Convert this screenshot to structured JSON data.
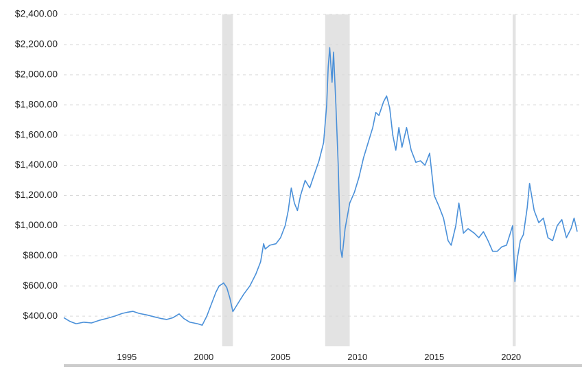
{
  "chart_data": {
    "type": "line",
    "title": "",
    "xlabel": "",
    "ylabel": "",
    "xlim": [
      1990.9,
      2024.3
    ],
    "ylim": [
      200,
      2400
    ],
    "y_ticks": [
      {
        "value": 400,
        "label": "$400.00"
      },
      {
        "value": 600,
        "label": "$600.00"
      },
      {
        "value": 800,
        "label": "$800.00"
      },
      {
        "value": 1000,
        "label": "$1,000.00"
      },
      {
        "value": 1200,
        "label": "$1,200.00"
      },
      {
        "value": 1400,
        "label": "$1,400.00"
      },
      {
        "value": 1600,
        "label": "$1,600.00"
      },
      {
        "value": 1800,
        "label": "$1,800.00"
      },
      {
        "value": 2000,
        "label": "$2,000.00"
      },
      {
        "value": 2200,
        "label": "$2,200.00"
      },
      {
        "value": 2400,
        "label": "$2,400.00"
      }
    ],
    "x_ticks": [
      {
        "value": 1995,
        "label": "1995"
      },
      {
        "value": 2000,
        "label": "2000"
      },
      {
        "value": 2005,
        "label": "2005"
      },
      {
        "value": 2010,
        "label": "2010"
      },
      {
        "value": 2015,
        "label": "2015"
      },
      {
        "value": 2020,
        "label": "2020"
      }
    ],
    "recessions": [
      {
        "start": 2001.2,
        "end": 2001.9
      },
      {
        "start": 2007.9,
        "end": 2009.5
      },
      {
        "start": 2020.1,
        "end": 2020.3
      }
    ],
    "grid": "horizontal dashed",
    "series": [
      {
        "color": "#4a90d9",
        "points": [
          [
            1990.9,
            390
          ],
          [
            1991.3,
            365
          ],
          [
            1991.7,
            350
          ],
          [
            1992.2,
            360
          ],
          [
            1992.7,
            355
          ],
          [
            1993.2,
            372
          ],
          [
            1993.7,
            385
          ],
          [
            1994.2,
            400
          ],
          [
            1994.7,
            418
          ],
          [
            1995.0,
            425
          ],
          [
            1995.4,
            432
          ],
          [
            1995.8,
            418
          ],
          [
            1996.3,
            408
          ],
          [
            1996.8,
            395
          ],
          [
            1997.2,
            385
          ],
          [
            1997.6,
            378
          ],
          [
            1998.0,
            390
          ],
          [
            1998.4,
            415
          ],
          [
            1998.7,
            385
          ],
          [
            1999.1,
            360
          ],
          [
            1999.6,
            350
          ],
          [
            1999.9,
            340
          ],
          [
            2000.2,
            400
          ],
          [
            2000.5,
            480
          ],
          [
            2000.8,
            560
          ],
          [
            2001.0,
            600
          ],
          [
            2001.3,
            620
          ],
          [
            2001.5,
            590
          ],
          [
            2001.7,
            520
          ],
          [
            2001.9,
            430
          ],
          [
            2002.2,
            480
          ],
          [
            2002.6,
            545
          ],
          [
            2003.0,
            600
          ],
          [
            2003.4,
            680
          ],
          [
            2003.7,
            760
          ],
          [
            2003.9,
            880
          ],
          [
            2004.0,
            845
          ],
          [
            2004.3,
            870
          ],
          [
            2004.7,
            880
          ],
          [
            2005.0,
            920
          ],
          [
            2005.3,
            1000
          ],
          [
            2005.5,
            1100
          ],
          [
            2005.7,
            1250
          ],
          [
            2005.9,
            1150
          ],
          [
            2006.1,
            1100
          ],
          [
            2006.3,
            1200
          ],
          [
            2006.6,
            1300
          ],
          [
            2006.9,
            1250
          ],
          [
            2007.2,
            1340
          ],
          [
            2007.5,
            1430
          ],
          [
            2007.8,
            1550
          ],
          [
            2008.0,
            1800
          ],
          [
            2008.1,
            2050
          ],
          [
            2008.2,
            2180
          ],
          [
            2008.35,
            1950
          ],
          [
            2008.45,
            2150
          ],
          [
            2008.6,
            1800
          ],
          [
            2008.75,
            1400
          ],
          [
            2008.9,
            850
          ],
          [
            2009.0,
            790
          ],
          [
            2009.2,
            980
          ],
          [
            2009.5,
            1150
          ],
          [
            2009.8,
            1220
          ],
          [
            2010.1,
            1320
          ],
          [
            2010.4,
            1450
          ],
          [
            2010.7,
            1550
          ],
          [
            2011.0,
            1650
          ],
          [
            2011.2,
            1750
          ],
          [
            2011.4,
            1730
          ],
          [
            2011.7,
            1820
          ],
          [
            2011.9,
            1860
          ],
          [
            2012.1,
            1780
          ],
          [
            2012.3,
            1600
          ],
          [
            2012.5,
            1500
          ],
          [
            2012.7,
            1650
          ],
          [
            2012.9,
            1520
          ],
          [
            2013.2,
            1650
          ],
          [
            2013.5,
            1500
          ],
          [
            2013.8,
            1420
          ],
          [
            2014.1,
            1430
          ],
          [
            2014.4,
            1400
          ],
          [
            2014.7,
            1480
          ],
          [
            2015.0,
            1200
          ],
          [
            2015.3,
            1130
          ],
          [
            2015.6,
            1050
          ],
          [
            2015.9,
            900
          ],
          [
            2016.1,
            870
          ],
          [
            2016.4,
            1000
          ],
          [
            2016.6,
            1150
          ],
          [
            2016.9,
            950
          ],
          [
            2017.2,
            980
          ],
          [
            2017.6,
            950
          ],
          [
            2017.9,
            920
          ],
          [
            2018.2,
            960
          ],
          [
            2018.5,
            900
          ],
          [
            2018.8,
            830
          ],
          [
            2019.1,
            830
          ],
          [
            2019.4,
            860
          ],
          [
            2019.7,
            870
          ],
          [
            2019.95,
            950
          ],
          [
            2020.1,
            1000
          ],
          [
            2020.25,
            630
          ],
          [
            2020.4,
            780
          ],
          [
            2020.6,
            900
          ],
          [
            2020.8,
            940
          ],
          [
            2021.05,
            1120
          ],
          [
            2021.2,
            1280
          ],
          [
            2021.5,
            1100
          ],
          [
            2021.8,
            1020
          ],
          [
            2022.1,
            1050
          ],
          [
            2022.4,
            920
          ],
          [
            2022.7,
            900
          ],
          [
            2023.0,
            1000
          ],
          [
            2023.3,
            1040
          ],
          [
            2023.6,
            920
          ],
          [
            2023.9,
            980
          ],
          [
            2024.1,
            1050
          ],
          [
            2024.3,
            960
          ]
        ]
      }
    ]
  }
}
